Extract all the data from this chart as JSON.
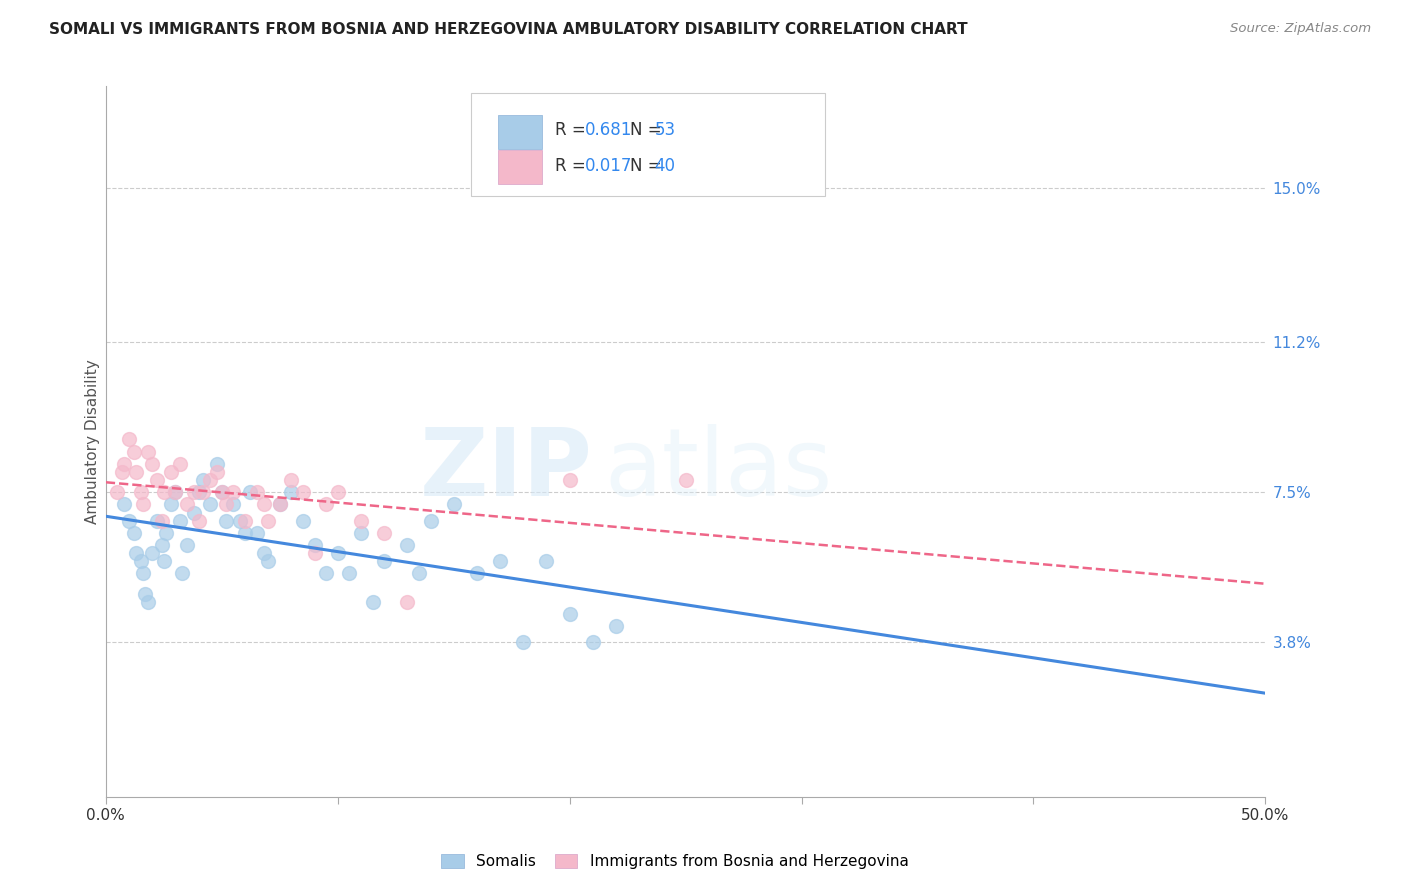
{
  "title": "SOMALI VS IMMIGRANTS FROM BOSNIA AND HERZEGOVINA AMBULATORY DISABILITY CORRELATION CHART",
  "source": "Source: ZipAtlas.com",
  "ylabel": "Ambulatory Disability",
  "xlim": [
    0.0,
    0.5
  ],
  "ylim": [
    0.0,
    0.175
  ],
  "xticks": [
    0.0,
    0.1,
    0.2,
    0.3,
    0.4,
    0.5
  ],
  "xticklabels": [
    "0.0%",
    "",
    "",
    "",
    "",
    "50.0%"
  ],
  "yticks": [
    0.038,
    0.075,
    0.112,
    0.15
  ],
  "yticklabels": [
    "3.8%",
    "7.5%",
    "11.2%",
    "15.0%"
  ],
  "somali_R": "0.681",
  "somali_N": "53",
  "bosnia_R": "0.017",
  "bosnia_N": "40",
  "somali_color": "#a8cce8",
  "bosnia_color": "#f4b8ca",
  "somali_line_color": "#4488dd",
  "bosnia_line_color": "#ee6688",
  "watermark_zip": "ZIP",
  "watermark_atlas": "atlas",
  "somali_x": [
    0.008,
    0.01,
    0.012,
    0.013,
    0.015,
    0.016,
    0.017,
    0.018,
    0.02,
    0.022,
    0.024,
    0.025,
    0.026,
    0.028,
    0.03,
    0.032,
    0.033,
    0.035,
    0.038,
    0.04,
    0.042,
    0.045,
    0.048,
    0.05,
    0.052,
    0.055,
    0.058,
    0.06,
    0.062,
    0.065,
    0.068,
    0.07,
    0.075,
    0.08,
    0.085,
    0.09,
    0.095,
    0.1,
    0.105,
    0.11,
    0.115,
    0.12,
    0.13,
    0.135,
    0.14,
    0.15,
    0.16,
    0.17,
    0.18,
    0.19,
    0.2,
    0.21,
    0.22
  ],
  "somali_y": [
    0.072,
    0.068,
    0.065,
    0.06,
    0.058,
    0.055,
    0.05,
    0.048,
    0.06,
    0.068,
    0.062,
    0.058,
    0.065,
    0.072,
    0.075,
    0.068,
    0.055,
    0.062,
    0.07,
    0.075,
    0.078,
    0.072,
    0.082,
    0.075,
    0.068,
    0.072,
    0.068,
    0.065,
    0.075,
    0.065,
    0.06,
    0.058,
    0.072,
    0.075,
    0.068,
    0.062,
    0.055,
    0.06,
    0.055,
    0.065,
    0.048,
    0.058,
    0.062,
    0.055,
    0.068,
    0.072,
    0.055,
    0.058,
    0.038,
    0.058,
    0.045,
    0.038,
    0.042
  ],
  "bosnia_x": [
    0.005,
    0.007,
    0.008,
    0.01,
    0.012,
    0.013,
    0.015,
    0.016,
    0.018,
    0.02,
    0.022,
    0.024,
    0.025,
    0.028,
    0.03,
    0.032,
    0.035,
    0.038,
    0.04,
    0.042,
    0.045,
    0.048,
    0.05,
    0.052,
    0.055,
    0.06,
    0.065,
    0.068,
    0.07,
    0.075,
    0.08,
    0.085,
    0.09,
    0.095,
    0.1,
    0.11,
    0.12,
    0.13,
    0.2,
    0.25
  ],
  "bosnia_y": [
    0.075,
    0.08,
    0.082,
    0.088,
    0.085,
    0.08,
    0.075,
    0.072,
    0.085,
    0.082,
    0.078,
    0.068,
    0.075,
    0.08,
    0.075,
    0.082,
    0.072,
    0.075,
    0.068,
    0.075,
    0.078,
    0.08,
    0.075,
    0.072,
    0.075,
    0.068,
    0.075,
    0.072,
    0.068,
    0.072,
    0.078,
    0.075,
    0.06,
    0.072,
    0.075,
    0.068,
    0.065,
    0.048,
    0.078,
    0.078
  ]
}
